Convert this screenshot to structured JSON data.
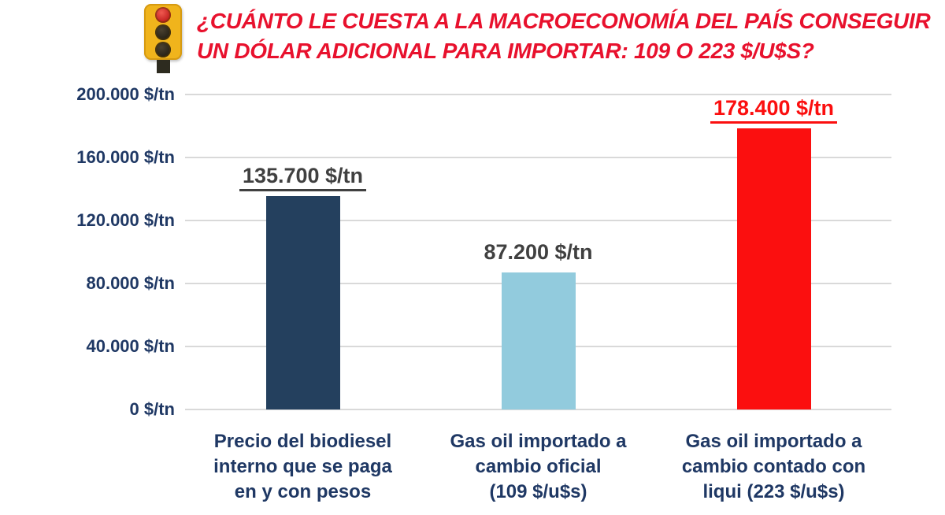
{
  "header": {
    "icon": "traffic-light-icon",
    "title_line1": "¿CUÁNTO LE CUESTA A LA MACROECONOMÍA DEL PAÍS CONSEGUIR",
    "title_line2": "UN DÓLAR ADICIONAL PARA IMPORTAR: 109 O 223 $/U$S?",
    "title_color": "#e8112d"
  },
  "chart_data": {
    "type": "bar",
    "title": "¿CUÁNTO LE CUESTA A LA MACROECONOMÍA DEL PAÍS CONSEGUIR UN DÓLAR ADICIONAL PARA IMPORTAR: 109 O 223 $/U$S?",
    "xlabel": "",
    "ylabel": "$/tn",
    "ylim": [
      0,
      200000
    ],
    "grid": true,
    "legend": "none",
    "gridline_color": "#d9d9d9",
    "axis_label_color": "#1f3864",
    "category_label_color": "#1f3864",
    "yticks": [
      {
        "value": 0,
        "label": "0 $/tn"
      },
      {
        "value": 40000,
        "label": "40.000 $/tn"
      },
      {
        "value": 80000,
        "label": "80.000 $/tn"
      },
      {
        "value": 120000,
        "label": "120.000 $/tn"
      },
      {
        "value": 160000,
        "label": "160.000 $/tn"
      },
      {
        "value": 200000,
        "label": "200.000 $/tn"
      }
    ],
    "bars": [
      {
        "category": "Precio del biodiesel\ninterno que se paga\nen y con pesos",
        "value": 135700,
        "value_label": "135.700 $/tn",
        "value_label_color": "#404040",
        "underline": true,
        "color": "#24405e"
      },
      {
        "category": "Gas oil importado a\ncambio oficial\n(109 $/u$s)",
        "value": 87200,
        "value_label": "87.200 $/tn",
        "value_label_color": "#404040",
        "underline": false,
        "color": "#92cbdd"
      },
      {
        "category": "Gas oil importado a\ncambio contado con\nliqui (223 $/u$s)",
        "value": 178400,
        "value_label": "178.400 $/tn",
        "value_label_color": "#fb0f0f",
        "underline": true,
        "color": "#fb0f0f"
      }
    ]
  }
}
